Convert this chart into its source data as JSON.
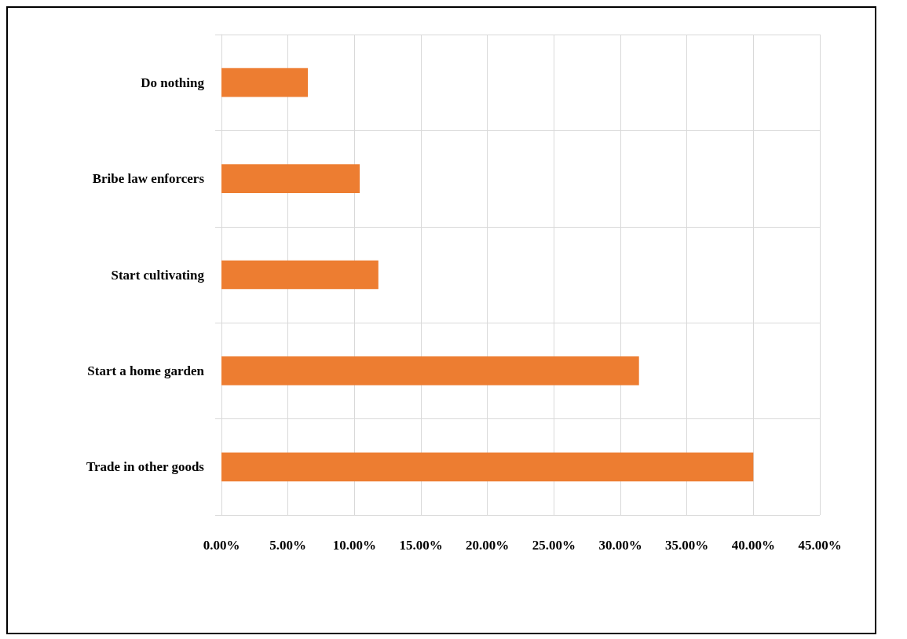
{
  "chart_data": {
    "type": "bar",
    "orientation": "horizontal",
    "categories": [
      "Do nothing",
      "Bribe law enforcers",
      "Start cultivating",
      "Start a home garden",
      "Trade in other goods"
    ],
    "values": [
      6.5,
      10.4,
      11.8,
      31.4,
      40.0
    ],
    "color": "#ed7d31",
    "xlim": [
      0,
      45
    ],
    "xticks": [
      {
        "value": 0,
        "label": "0.00%"
      },
      {
        "value": 5,
        "label": "5.00%"
      },
      {
        "value": 10,
        "label": "10.00%"
      },
      {
        "value": 15,
        "label": "15.00%"
      },
      {
        "value": 20,
        "label": "20.00%"
      },
      {
        "value": 25,
        "label": "25.00%"
      },
      {
        "value": 30,
        "label": "30.00%"
      },
      {
        "value": 35,
        "label": "35.00%"
      },
      {
        "value": 40,
        "label": "40.00%"
      },
      {
        "value": 45,
        "label": "45.00%"
      }
    ],
    "grid": true
  }
}
